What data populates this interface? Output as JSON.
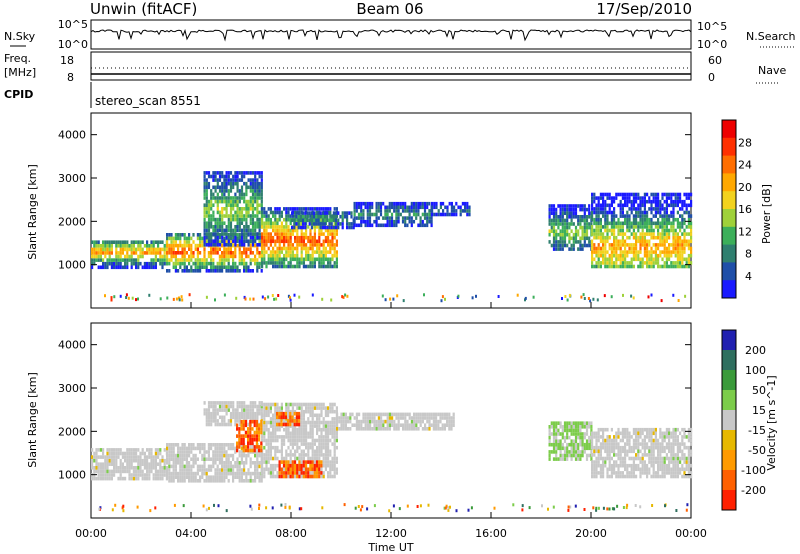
{
  "header": {
    "station": "Unwin (fitACF)",
    "beam": "Beam 06",
    "date": "17/Sep/2010"
  },
  "top_panels": {
    "nsky_label": "N.Sky",
    "nsky_ticks": [
      "10^5",
      "10^0"
    ],
    "nsearch_label": "N.Search",
    "nsearch_ticks": [
      "10^5",
      "10^0"
    ],
    "freq_label": "Freq.",
    "freq_unit": "[MHz]",
    "freq_ticks": [
      "18",
      "8"
    ],
    "nave_label": "Nave",
    "nave_ticks": [
      "60",
      "0"
    ],
    "cpid_label": "CPID",
    "cpid_value": "stereo_scan 8551"
  },
  "time_axis": {
    "label": "Time UT",
    "ticks": [
      "00:00",
      "04:00",
      "08:00",
      "12:00",
      "16:00",
      "20:00",
      "00:00"
    ]
  },
  "colors": {
    "power_scale": [
      "#1a1aff",
      "#1f4fa8",
      "#2f7f6f",
      "#3caf5a",
      "#9fd13a",
      "#f2d21e",
      "#ffa800",
      "#ff6e00",
      "#ff3000",
      "#ee0000"
    ],
    "velocity_scale": [
      "#2020b0",
      "#2f6f5f",
      "#3a9a3a",
      "#7ccc4a",
      "#c8c8c8",
      "#e6b800",
      "#ff9a00",
      "#ff6000",
      "#ff2000"
    ]
  },
  "chart_data": [
    {
      "type": "heatmap",
      "title": "Power",
      "xlabel": "Time UT",
      "ylabel": "Slant Range [km]",
      "x_range_hours": [
        0,
        24
      ],
      "ylim": [
        0,
        4500
      ],
      "y_ticks": [
        1000,
        2000,
        3000,
        4000
      ],
      "colorbar": {
        "label": "Power [dB]",
        "range": [
          0,
          32
        ],
        "ticks": [
          4,
          8,
          12,
          16,
          20,
          24,
          28
        ]
      },
      "regions": [
        {
          "t": [
            0.0,
            3.0
          ],
          "r": [
            980,
            1600
          ],
          "core": 1330,
          "peak_db": 22
        },
        {
          "t": [
            3.0,
            6.8
          ],
          "r": [
            900,
            1800
          ],
          "core": 1350,
          "peak_db": 26
        },
        {
          "t": [
            4.5,
            6.8
          ],
          "r": [
            1500,
            3200
          ],
          "core": 2300,
          "peak_db": 14
        },
        {
          "t": [
            6.8,
            9.8
          ],
          "r": [
            1000,
            2400
          ],
          "core": 1600,
          "peak_db": 26
        },
        {
          "t": [
            8.0,
            10.5
          ],
          "r": [
            1900,
            2300
          ],
          "core": 2100,
          "peak_db": 10
        },
        {
          "t": [
            10.5,
            13.6
          ],
          "r": [
            1950,
            2500
          ],
          "core": 2200,
          "peak_db": 9
        },
        {
          "t": [
            13.6,
            15.1
          ],
          "r": [
            2200,
            2450
          ],
          "core": 2300,
          "peak_db": 7
        },
        {
          "t": [
            18.3,
            20.0
          ],
          "r": [
            1400,
            2400
          ],
          "core": 1800,
          "peak_db": 14
        },
        {
          "t": [
            20.0,
            24.0
          ],
          "r": [
            1000,
            2700
          ],
          "core": 1450,
          "peak_db": 22
        }
      ]
    },
    {
      "type": "heatmap",
      "title": "Velocity",
      "xlabel": "Time UT",
      "ylabel": "Slant Range [km]",
      "x_range_hours": [
        0,
        24
      ],
      "ylim": [
        0,
        4500
      ],
      "y_ticks": [
        1000,
        2000,
        3000,
        4000
      ],
      "colorbar": {
        "label": "Velocity [m s^-1]",
        "tick_labels": [
          "200",
          "100",
          "50",
          "15",
          "-15",
          "-50",
          "-100",
          "-200"
        ]
      },
      "regions": [
        {
          "t": [
            0.0,
            3.0
          ],
          "r": [
            950,
            1650
          ],
          "kind": "ground"
        },
        {
          "t": [
            3.0,
            6.8
          ],
          "r": [
            900,
            1800
          ],
          "kind": "ground"
        },
        {
          "t": [
            4.5,
            6.8
          ],
          "r": [
            2200,
            2700
          ],
          "kind": "ground"
        },
        {
          "t": [
            6.8,
            9.8
          ],
          "r": [
            1000,
            2700
          ],
          "kind": "ground"
        },
        {
          "t": [
            9.8,
            14.5
          ],
          "r": [
            2100,
            2500
          ],
          "kind": "ground"
        },
        {
          "t": [
            18.3,
            20.0
          ],
          "r": [
            1400,
            2300
          ],
          "kind": "mixed"
        },
        {
          "t": [
            20.0,
            24.0
          ],
          "r": [
            1000,
            2100
          ],
          "kind": "ground"
        },
        {
          "t": [
            5.8,
            6.8
          ],
          "r": [
            1600,
            2300
          ],
          "kind": "negative"
        },
        {
          "t": [
            7.5,
            9.2
          ],
          "r": [
            1000,
            1400
          ],
          "kind": "negative"
        },
        {
          "t": [
            7.4,
            8.3
          ],
          "r": [
            2200,
            2500
          ],
          "kind": "negative"
        }
      ]
    }
  ]
}
